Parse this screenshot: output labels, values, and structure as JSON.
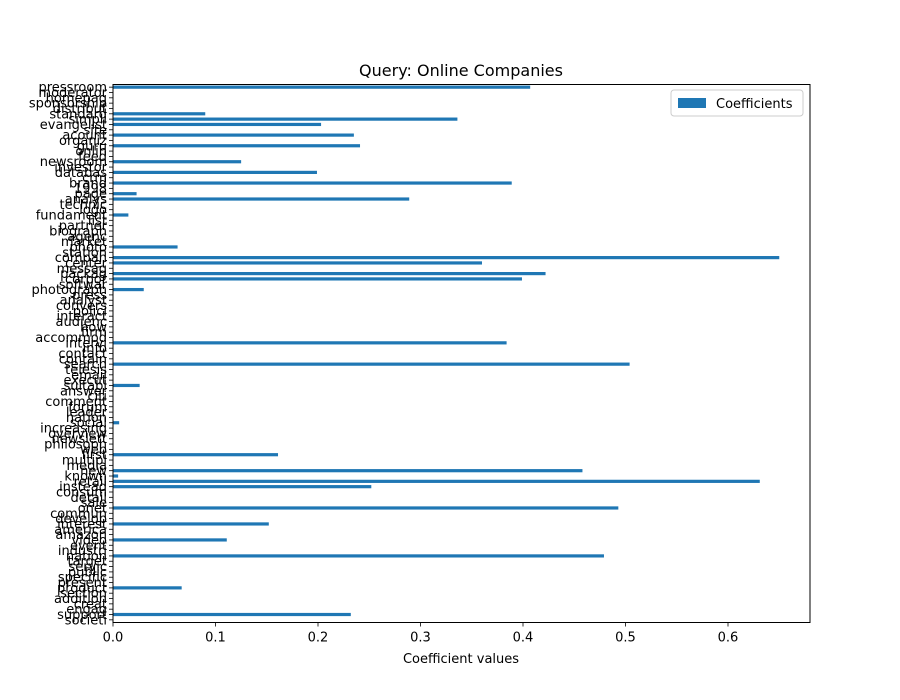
{
  "chart_data": {
    "type": "bar",
    "orientation": "horizontal",
    "title": "Query: Online Companies",
    "xlabel": "Coefficient values",
    "ylabel": "",
    "xlim": [
      0,
      0.68
    ],
    "x_ticks": [
      0.0,
      0.1,
      0.2,
      0.3,
      0.4,
      0.5,
      0.6
    ],
    "x_tick_labels": [
      "0.0",
      "0.1",
      "0.2",
      "0.3",
      "0.4",
      "0.5",
      "0.6"
    ],
    "grid": false,
    "legend_position": "top-right",
    "bar_color": "#1f77b4",
    "series": [
      {
        "name": "Coefficients",
        "values": [
          0.407,
          0.0,
          0.0,
          0.0,
          0.0,
          0.09,
          0.336,
          0.203,
          0.0,
          0.235,
          0.0,
          0.241,
          0.0,
          0.0,
          0.125,
          0.0,
          0.199,
          0.0,
          0.389,
          0.0,
          0.023,
          0.289,
          0.0,
          0.0,
          0.015,
          0.0,
          0.0,
          0.0,
          0.0,
          0.0,
          0.063,
          0.0,
          0.65,
          0.36,
          0.0,
          0.422,
          0.399,
          0.0,
          0.03,
          0.0,
          0.0,
          0.0,
          0.0,
          0.0,
          0.0,
          0.0,
          0.0,
          0.0,
          0.384,
          0.0,
          0.0,
          0.0,
          0.504,
          0.0,
          0.0,
          0.0,
          0.026,
          0.0,
          0.0,
          0.0,
          0.0,
          0.0,
          0.0,
          0.006,
          0.0,
          0.0,
          0.0,
          0.0,
          0.0,
          0.161,
          0.0,
          0.0,
          0.458,
          0.005,
          0.631,
          0.252,
          0.0,
          0.0,
          0.0,
          0.493,
          0.0,
          0.0,
          0.152,
          0.0,
          0.0,
          0.111,
          0.0,
          0.0,
          0.479,
          0.0,
          0.0,
          0.0,
          0.0,
          0.0,
          0.067,
          0.0,
          0.0,
          0.0,
          0.0,
          0.232,
          0.0
        ]
      }
    ],
    "categories": [
      "pressroom",
      "moderator",
      "homepag",
      "sponsorship",
      "distribut",
      "standard",
      "simpli",
      "evangelist",
      "site",
      "acount",
      "organiz",
      "guru",
      "onlin",
      "feed",
      "newsroom",
      "investor",
      "databas",
      "crm",
      "brand",
      "1998",
      "page",
      "analys",
      "technic",
      "logo",
      "fundament",
      "list",
      "partner",
      "biograph",
      "agenc",
      "market",
      "photo",
      "station",
      "compan",
      "center",
      "messag",
      "packag",
      "corpor",
      "softwar",
      "photograph",
      "press",
      "analyst",
      "convers",
      "polici",
      "interact",
      "audienc",
      "how",
      "firm",
      "accommod",
      "intervi",
      "info",
      "contact",
      "contain",
      "search",
      "telesis",
      "email",
      "execut",
      "suitabl",
      "answer",
      "citi",
      "comment",
      "forum",
      "leader",
      "nation",
      "social",
      "increasing",
      "overview",
      "newslett",
      "philosoph",
      "web",
      "first",
      "multipl",
      "media",
      "new",
      "known",
      "retail",
      "instead",
      "consum",
      "detail",
      "sale",
      "onet",
      "commun",
      "develop",
      "interest",
      "america",
      "amazon",
      "video",
      "event",
      "industri",
      "nation",
      "target",
      "servic",
      "public",
      "specific",
      "present",
      "product",
      "section",
      "addition",
      "creat",
      "engag",
      "support",
      "societi"
    ]
  }
}
